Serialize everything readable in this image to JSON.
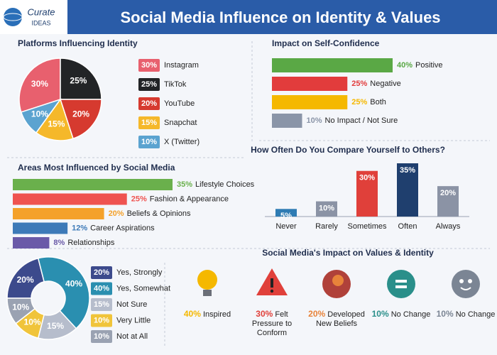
{
  "header": {
    "logo_top": "Curate",
    "logo_bottom": "IDEAS",
    "title": "Social Media Influence on Identity & Values"
  },
  "chart_data": [
    {
      "type": "pie",
      "title": "Platforms Influencing Identity",
      "categories": [
        "Instagram",
        "TikTok",
        "YouTube",
        "Snapchat",
        "X (Twitter)"
      ],
      "values": [
        30,
        25,
        20,
        15,
        10
      ],
      "value_labels": [
        "30%",
        "25%",
        "20%",
        "15%",
        "10%"
      ],
      "colors": [
        "#e8606e",
        "#222426",
        "#d63a2f",
        "#f5b82a",
        "#5ba3d0"
      ]
    },
    {
      "type": "hbar",
      "title": "Impact on Self-Confidence",
      "categories": [
        "Positive",
        "Negative",
        "Both",
        "No Impact / Not Sure"
      ],
      "values": [
        40,
        25,
        25,
        10
      ],
      "value_labels": [
        "40%",
        "25%",
        "25%",
        "10%"
      ],
      "colors": [
        "#5aa845",
        "#e23c3c",
        "#f5b800",
        "#8a95a8"
      ]
    },
    {
      "type": "hbar",
      "title": "Areas Most Influenced by Social Media",
      "categories": [
        "Lifestyle Choices",
        "Fashion & Appearance",
        "Beliefs & Opinions",
        "Career Aspirations",
        "Relationships"
      ],
      "values": [
        35,
        25,
        20,
        12,
        8
      ],
      "value_labels": [
        "35%",
        "25%",
        "20%",
        "12%",
        "8%"
      ],
      "colors": [
        "#6ab04c",
        "#ef5350",
        "#f4a12a",
        "#3d7ab8",
        "#6a5aa8"
      ]
    },
    {
      "type": "bar",
      "title": "How Often Do You Compare Yourself to Others?",
      "categories": [
        "Never",
        "Rarely",
        "Sometimes",
        "Often",
        "Always"
      ],
      "values": [
        5,
        10,
        30,
        35,
        20
      ],
      "value_labels": [
        "5%",
        "10%",
        "30%",
        "35%",
        "20%"
      ],
      "colors": [
        "#2e7bb3",
        "#8b93a5",
        "#e0403a",
        "#1f3f6e",
        "#8b93a5"
      ]
    },
    {
      "type": "donut",
      "title": "Social Media's Impact on Values & Identity",
      "categories": [
        "Yes, Strongly",
        "Yes, Somewhat",
        "Not Sure",
        "Very Little",
        "Not at All"
      ],
      "values": [
        20,
        40,
        15,
        10,
        10
      ],
      "value_labels": [
        "20%",
        "40%",
        "15%",
        "10%",
        "10%"
      ],
      "colors": [
        "#3c4a8c",
        "#2a8fb0",
        "#b6bdcc",
        "#f0c43a",
        "#9aa2b2"
      ]
    },
    {
      "type": "pictogram",
      "categories": [
        "Inspired",
        "Felt Pressure to Conform",
        "Developed New Beliefs",
        "No Change",
        "No Change"
      ],
      "values": [
        40,
        30,
        20,
        10,
        10
      ],
      "value_labels": [
        "40%",
        "30%",
        "20%",
        "10%",
        "10%"
      ],
      "colors": [
        "#f5b800",
        "#e0403a",
        "#e8833a",
        "#2a8f8a",
        "#7b8594"
      ]
    }
  ]
}
